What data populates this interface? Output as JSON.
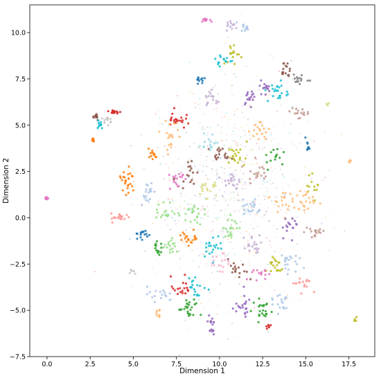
{
  "chart_data": {
    "type": "scatter",
    "title": "",
    "xlabel": "Dimension 1",
    "ylabel": "Dimension 2",
    "xlim": [
      -1.0,
      19.0
    ],
    "ylim": [
      -7.5,
      11.5
    ],
    "x_ticks": [
      0.0,
      2.5,
      5.0,
      7.5,
      10.0,
      12.5,
      15.0,
      17.5
    ],
    "x_tick_labels": [
      "0.0",
      "2.5",
      "5.0",
      "7.5",
      "10.0",
      "12.5",
      "15.0",
      "17.5"
    ],
    "y_ticks": [
      -7.5,
      -5.0,
      -2.5,
      0.0,
      2.5,
      5.0,
      7.5,
      10.0
    ],
    "y_tick_labels": [
      "−7.5",
      "−5.0",
      "−2.5",
      "0.0",
      "2.5",
      "5.0",
      "7.5",
      "10.0"
    ],
    "grid": false,
    "legend": "none",
    "palette": [
      "#1f77b4",
      "#aec7e8",
      "#ff7f0e",
      "#ffbb78",
      "#2ca02c",
      "#98df8a",
      "#d62728",
      "#ff9896",
      "#9467bd",
      "#c5b0d5",
      "#8c564b",
      "#c49c94",
      "#e377c2",
      "#f7b6d2",
      "#7f7f7f",
      "#c7c7c7",
      "#bcbd22",
      "#dbdb8d",
      "#17becf",
      "#9edae5"
    ],
    "background_color": "#c7c7c7",
    "clusters": [
      {
        "x": 0.0,
        "y": 1.05,
        "sx": 0.06,
        "sy": 0.05,
        "color": "#e377c2",
        "n": 10
      },
      {
        "x": 2.65,
        "y": 4.2,
        "sx": 0.05,
        "sy": 0.07,
        "color": "#ff7f0e",
        "n": 8
      },
      {
        "x": 2.8,
        "y": 5.5,
        "sx": 0.12,
        "sy": 0.12,
        "color": "#8c564b",
        "n": 12
      },
      {
        "x": 3.05,
        "y": 5.1,
        "sx": 0.1,
        "sy": 0.15,
        "color": "#17becf",
        "n": 10
      },
      {
        "x": 3.9,
        "y": 5.7,
        "sx": 0.2,
        "sy": 0.06,
        "color": "#d62728",
        "n": 14
      },
      {
        "x": 3.5,
        "y": 5.3,
        "sx": 0.15,
        "sy": 0.12,
        "color": "#c7c7c7",
        "n": 12
      },
      {
        "x": 4.3,
        "y": 0.0,
        "sx": 0.3,
        "sy": 0.12,
        "color": "#ff9896",
        "n": 20
      },
      {
        "x": 9.2,
        "y": 10.7,
        "sx": 0.12,
        "sy": 0.05,
        "color": "#e377c2",
        "n": 12
      },
      {
        "x": 10.7,
        "y": 10.35,
        "sx": 0.15,
        "sy": 0.15,
        "color": "#c5b0d5",
        "n": 12
      },
      {
        "x": 11.5,
        "y": 10.3,
        "sx": 0.15,
        "sy": 0.12,
        "color": "#aec7e8",
        "n": 12
      },
      {
        "x": 10.8,
        "y": 8.8,
        "sx": 0.3,
        "sy": 0.3,
        "color": "#bcbd22",
        "n": 16
      },
      {
        "x": 10.2,
        "y": 8.5,
        "sx": 0.3,
        "sy": 0.2,
        "color": "#17becf",
        "n": 14
      },
      {
        "x": 8.9,
        "y": 7.5,
        "sx": 0.15,
        "sy": 0.12,
        "color": "#1f77b4",
        "n": 12
      },
      {
        "x": 7.5,
        "y": 5.3,
        "sx": 0.25,
        "sy": 0.25,
        "color": "#d62728",
        "n": 22
      },
      {
        "x": 7.2,
        "y": 4.5,
        "sx": 0.3,
        "sy": 0.4,
        "color": "#ffbb78",
        "n": 20
      },
      {
        "x": 6.1,
        "y": 3.4,
        "sx": 0.15,
        "sy": 0.15,
        "color": "#ff7f0e",
        "n": 12
      },
      {
        "x": 4.6,
        "y": 2.0,
        "sx": 0.25,
        "sy": 0.5,
        "color": "#ff7f0e",
        "n": 26
      },
      {
        "x": 5.8,
        "y": 1.4,
        "sx": 0.2,
        "sy": 0.3,
        "color": "#aec7e8",
        "n": 18
      },
      {
        "x": 7.5,
        "y": 2.1,
        "sx": 0.2,
        "sy": 0.3,
        "color": "#e377c2",
        "n": 18
      },
      {
        "x": 8.2,
        "y": 2.5,
        "sx": 0.3,
        "sy": 0.3,
        "color": "#8c564b",
        "n": 16
      },
      {
        "x": 10.1,
        "y": 3.4,
        "sx": 0.3,
        "sy": 0.2,
        "color": "#8c564b",
        "n": 18
      },
      {
        "x": 11.1,
        "y": 3.3,
        "sx": 0.3,
        "sy": 0.3,
        "color": "#bcbd22",
        "n": 20
      },
      {
        "x": 12.3,
        "y": 4.7,
        "sx": 0.3,
        "sy": 0.3,
        "color": "#ffbb78",
        "n": 18
      },
      {
        "x": 13.4,
        "y": 6.8,
        "sx": 0.3,
        "sy": 0.3,
        "color": "#17becf",
        "n": 22
      },
      {
        "x": 14.5,
        "y": 7.5,
        "sx": 0.3,
        "sy": 0.15,
        "color": "#7f7f7f",
        "n": 16
      },
      {
        "x": 13.8,
        "y": 8.0,
        "sx": 0.15,
        "sy": 0.2,
        "color": "#8c564b",
        "n": 14
      },
      {
        "x": 14.5,
        "y": 5.7,
        "sx": 0.3,
        "sy": 0.15,
        "color": "#c49c94",
        "n": 16
      },
      {
        "x": 15.1,
        "y": 3.8,
        "sx": 0.06,
        "sy": 0.15,
        "color": "#1f77b4",
        "n": 10
      },
      {
        "x": 15.5,
        "y": 1.7,
        "sx": 0.2,
        "sy": 0.3,
        "color": "#bcbd22",
        "n": 12
      },
      {
        "x": 15.0,
        "y": 0.9,
        "sx": 0.3,
        "sy": 0.3,
        "color": "#ffbb78",
        "n": 20
      },
      {
        "x": 15.5,
        "y": -0.8,
        "sx": 0.3,
        "sy": 0.2,
        "color": "#c49c94",
        "n": 18
      },
      {
        "x": 14.8,
        "y": -3.5,
        "sx": 0.3,
        "sy": 0.2,
        "color": "#ff9896",
        "n": 16
      },
      {
        "x": 13.9,
        "y": -2.4,
        "sx": 0.3,
        "sy": 0.3,
        "color": "#aec7e8",
        "n": 20
      },
      {
        "x": 13.2,
        "y": -2.6,
        "sx": 0.25,
        "sy": 0.3,
        "color": "#bcbd22",
        "n": 20
      },
      {
        "x": 13.5,
        "y": -4.5,
        "sx": 0.3,
        "sy": 0.3,
        "color": "#aec7e8",
        "n": 18
      },
      {
        "x": 12.5,
        "y": -5.0,
        "sx": 0.3,
        "sy": 0.3,
        "color": "#2ca02c",
        "n": 22
      },
      {
        "x": 11.3,
        "y": -4.8,
        "sx": 0.3,
        "sy": 0.3,
        "color": "#9467bd",
        "n": 20
      },
      {
        "x": 9.5,
        "y": -5.8,
        "sx": 0.1,
        "sy": 0.3,
        "color": "#9467bd",
        "n": 16
      },
      {
        "x": 8.2,
        "y": -5.0,
        "sx": 0.3,
        "sy": 0.3,
        "color": "#2ca02c",
        "n": 24
      },
      {
        "x": 7.8,
        "y": -3.8,
        "sx": 0.3,
        "sy": 0.3,
        "color": "#d62728",
        "n": 18
      },
      {
        "x": 6.4,
        "y": -4.1,
        "sx": 0.3,
        "sy": 0.2,
        "color": "#aec7e8",
        "n": 16
      },
      {
        "x": 6.5,
        "y": -5.2,
        "sx": 0.1,
        "sy": 0.15,
        "color": "#ffbb78",
        "n": 10
      },
      {
        "x": 5.5,
        "y": -0.8,
        "sx": 0.2,
        "sy": 0.3,
        "color": "#1f77b4",
        "n": 16
      },
      {
        "x": 6.4,
        "y": -1.7,
        "sx": 0.15,
        "sy": 0.2,
        "color": "#2ca02c",
        "n": 14
      },
      {
        "x": 7.2,
        "y": -1.5,
        "sx": 0.2,
        "sy": 0.2,
        "color": "#98df8a",
        "n": 16
      },
      {
        "x": 8.3,
        "y": -1.1,
        "sx": 0.3,
        "sy": 0.2,
        "color": "#ff7f0e",
        "n": 20
      },
      {
        "x": 9.6,
        "y": -1.5,
        "sx": 0.3,
        "sy": 0.3,
        "color": "#17becf",
        "n": 20
      },
      {
        "x": 8.6,
        "y": -3.8,
        "sx": 0.3,
        "sy": 0.3,
        "color": "#17becf",
        "n": 18
      },
      {
        "x": 10.8,
        "y": -0.5,
        "sx": 0.3,
        "sy": 0.3,
        "color": "#98df8a",
        "n": 20
      },
      {
        "x": 12.0,
        "y": -1.5,
        "sx": 0.3,
        "sy": 0.3,
        "color": "#c5b0d5",
        "n": 20
      },
      {
        "x": 11.8,
        "y": 0.6,
        "sx": 0.3,
        "sy": 0.3,
        "color": "#aec7e8",
        "n": 20
      },
      {
        "x": 13.6,
        "y": 0.9,
        "sx": 0.3,
        "sy": 0.3,
        "color": "#ffbb78",
        "n": 20
      },
      {
        "x": 12.2,
        "y": 2.5,
        "sx": 0.3,
        "sy": 0.3,
        "color": "#c49c94",
        "n": 18
      },
      {
        "x": 8.4,
        "y": 0.2,
        "sx": 0.3,
        "sy": 0.3,
        "color": "#98df8a",
        "n": 20
      },
      {
        "x": 9.3,
        "y": 1.6,
        "sx": 0.3,
        "sy": 0.3,
        "color": "#dbdb8d",
        "n": 20
      },
      {
        "x": 10.7,
        "y": 2.0,
        "sx": 0.3,
        "sy": 0.3,
        "color": "#c5b0d5",
        "n": 20
      },
      {
        "x": 6.9,
        "y": 0.3,
        "sx": 0.3,
        "sy": 0.3,
        "color": "#98df8a",
        "n": 18
      },
      {
        "x": 9.6,
        "y": 6.4,
        "sx": 0.25,
        "sy": 0.25,
        "color": "#c5b0d5",
        "n": 16
      },
      {
        "x": 11.7,
        "y": 6.6,
        "sx": 0.2,
        "sy": 0.2,
        "color": "#9467bd",
        "n": 16
      },
      {
        "x": 12.7,
        "y": 7.0,
        "sx": 0.2,
        "sy": 0.2,
        "color": "#9467bd",
        "n": 14
      },
      {
        "x": 10.0,
        "y": -2.5,
        "sx": 0.3,
        "sy": 0.3,
        "color": "#f7b6d2",
        "n": 16
      },
      {
        "x": 11.1,
        "y": -2.9,
        "sx": 0.3,
        "sy": 0.3,
        "color": "#8c564b",
        "n": 16
      },
      {
        "x": 12.3,
        "y": -3.1,
        "sx": 0.25,
        "sy": 0.25,
        "color": "#e377c2",
        "n": 14
      },
      {
        "x": 9.4,
        "y": 4.0,
        "sx": 0.3,
        "sy": 0.3,
        "color": "#9edae5",
        "n": 16
      },
      {
        "x": 13.2,
        "y": 3.3,
        "sx": 0.3,
        "sy": 0.3,
        "color": "#2ca02c",
        "n": 14
      },
      {
        "x": 14.1,
        "y": -0.4,
        "sx": 0.3,
        "sy": 0.3,
        "color": "#9467bd",
        "n": 16
      },
      {
        "x": 16.3,
        "y": 6.2,
        "sx": 0.05,
        "sy": 0.05,
        "color": "#dbdb8d",
        "n": 4
      },
      {
        "x": 17.6,
        "y": 3.05,
        "sx": 0.05,
        "sy": 0.05,
        "color": "#ffbb78",
        "n": 4
      },
      {
        "x": 17.9,
        "y": -5.5,
        "sx": 0.05,
        "sy": 0.05,
        "color": "#bcbd22",
        "n": 4
      },
      {
        "x": 12.9,
        "y": -5.9,
        "sx": 0.1,
        "sy": 0.1,
        "color": "#d62728",
        "n": 6
      },
      {
        "x": 5.0,
        "y": -2.9,
        "sx": 0.1,
        "sy": 0.1,
        "color": "#c7c7c7",
        "n": 6
      }
    ]
  }
}
